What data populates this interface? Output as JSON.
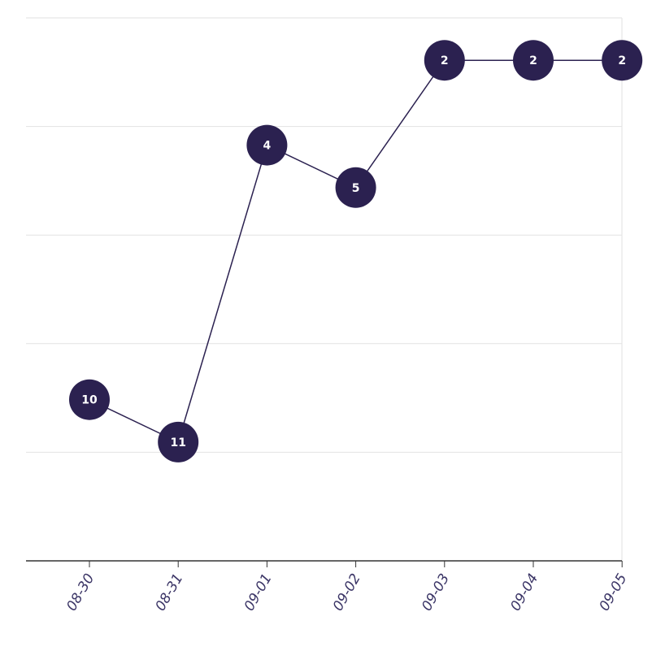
{
  "chart_data": {
    "type": "line",
    "categories": [
      "08-30",
      "08-31",
      "09-01",
      "09-02",
      "09-03",
      "09-04",
      "09-05"
    ],
    "values": [
      10,
      11,
      4,
      5,
      2,
      2,
      2
    ],
    "color": "#2b2150",
    "ylim": [
      13.8,
      1
    ],
    "grid": true
  }
}
